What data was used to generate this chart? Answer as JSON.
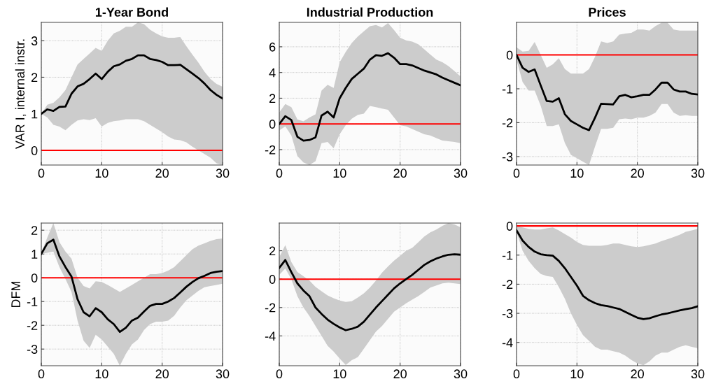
{
  "chart_data": [
    {
      "type": "line",
      "title": "1-Year Bond",
      "ylabel": "VAR I, internal instr.",
      "xlim": [
        0,
        30
      ],
      "xticks": [
        0,
        10,
        20,
        30
      ],
      "ylim": [
        -0.4,
        3.5
      ],
      "yticks": [
        0,
        1,
        2,
        3
      ],
      "grid": true,
      "ref_lines": [
        {
          "axis": "y",
          "value": 0,
          "color": "#ff0000"
        }
      ],
      "x": [
        0,
        1,
        2,
        3,
        4,
        5,
        6,
        7,
        8,
        9,
        10,
        11,
        12,
        13,
        14,
        15,
        16,
        17,
        18,
        19,
        20,
        21,
        22,
        23,
        24,
        25,
        26,
        27,
        28,
        29,
        30
      ],
      "series": [
        {
          "color": "#000000",
          "values": [
            1.0,
            1.12,
            1.08,
            1.19,
            1.2,
            1.55,
            1.75,
            1.82,
            1.95,
            2.1,
            1.95,
            2.15,
            2.3,
            2.35,
            2.45,
            2.5,
            2.6,
            2.6,
            2.5,
            2.47,
            2.42,
            2.33,
            2.33,
            2.34,
            2.22,
            2.1,
            1.98,
            1.83,
            1.65,
            1.52,
            1.42
          ],
          "upper": [
            1.0,
            1.25,
            1.3,
            1.45,
            1.65,
            2.0,
            2.35,
            2.5,
            2.65,
            2.8,
            2.72,
            3.0,
            3.2,
            3.27,
            3.38,
            3.38,
            3.5,
            3.45,
            3.3,
            3.2,
            3.12,
            3.08,
            3.08,
            3.1,
            2.85,
            2.62,
            2.4,
            2.15,
            1.95,
            1.82,
            1.74
          ],
          "lower": [
            1.0,
            0.9,
            0.7,
            0.65,
            0.55,
            0.7,
            0.82,
            0.85,
            0.83,
            0.88,
            0.65,
            0.75,
            0.8,
            0.82,
            0.85,
            0.85,
            0.85,
            0.8,
            0.7,
            0.6,
            0.5,
            0.38,
            0.3,
            0.28,
            0.22,
            0.1,
            0.0,
            -0.1,
            -0.2,
            -0.35,
            -0.4
          ]
        }
      ]
    },
    {
      "type": "line",
      "title": "Industrial Production",
      "xlim": [
        0,
        30
      ],
      "xticks": [
        0,
        10,
        20,
        30
      ],
      "ylim": [
        -3.2,
        7.9
      ],
      "yticks": [
        -2,
        0,
        2,
        4,
        6
      ],
      "grid": true,
      "ref_lines": [
        {
          "axis": "y",
          "value": 0,
          "color": "#ff0000"
        }
      ],
      "x": [
        0,
        1,
        2,
        3,
        4,
        5,
        6,
        7,
        8,
        9,
        10,
        11,
        12,
        13,
        14,
        15,
        16,
        17,
        18,
        19,
        20,
        21,
        22,
        23,
        24,
        25,
        26,
        27,
        28,
        29,
        30
      ],
      "series": [
        {
          "color": "#000000",
          "values": [
            0,
            0.6,
            0.3,
            -1.0,
            -1.3,
            -1.25,
            -1.05,
            0.65,
            0.95,
            0.5,
            2.0,
            2.8,
            3.5,
            3.9,
            4.3,
            5.0,
            5.35,
            5.3,
            5.5,
            5.15,
            4.65,
            4.65,
            4.55,
            4.35,
            4.15,
            4.0,
            3.85,
            3.6,
            3.4,
            3.2,
            3.0
          ],
          "upper": [
            0.9,
            1.55,
            1.3,
            0.35,
            0.2,
            0.5,
            0.75,
            2.6,
            3.05,
            2.8,
            4.8,
            5.6,
            6.3,
            6.8,
            7.2,
            7.6,
            7.7,
            7.5,
            7.85,
            7.3,
            6.7,
            6.5,
            6.4,
            6.2,
            5.8,
            5.4,
            5.0,
            4.8,
            4.5,
            4.1,
            3.7
          ],
          "lower": [
            -0.5,
            -0.2,
            -0.9,
            -2.5,
            -3.0,
            -3.2,
            -2.9,
            -1.5,
            -1.4,
            -1.9,
            -0.8,
            -0.1,
            0.4,
            0.7,
            0.8,
            1.4,
            1.3,
            1.2,
            1.1,
            0.5,
            -0.1,
            -0.2,
            -0.4,
            -0.6,
            -0.8,
            -0.9,
            -1.1,
            -1.3,
            -1.35,
            -1.4,
            -1.5
          ]
        }
      ]
    },
    {
      "type": "line",
      "title": "Prices",
      "xlim": [
        0,
        30
      ],
      "xticks": [
        0,
        10,
        20,
        30
      ],
      "ylim": [
        -3.25,
        0.96
      ],
      "yticks": [
        -3,
        -2,
        -1,
        0
      ],
      "grid": true,
      "ref_lines": [
        {
          "axis": "y",
          "value": 0,
          "color": "#ff0000"
        }
      ],
      "x": [
        0,
        1,
        2,
        3,
        4,
        5,
        6,
        7,
        8,
        9,
        10,
        11,
        12,
        13,
        14,
        15,
        16,
        17,
        18,
        19,
        20,
        21,
        22,
        23,
        24,
        25,
        26,
        27,
        28,
        29,
        30
      ],
      "series": [
        {
          "color": "#000000",
          "values": [
            0,
            -0.38,
            -0.5,
            -0.43,
            -0.9,
            -1.36,
            -1.38,
            -1.28,
            -1.75,
            -1.95,
            -2.05,
            -2.15,
            -2.22,
            -1.85,
            -1.44,
            -1.45,
            -1.46,
            -1.22,
            -1.18,
            -1.25,
            -1.22,
            -1.18,
            -1.18,
            -1.02,
            -0.82,
            -0.82,
            -1.02,
            -1.08,
            -1.08,
            -1.15,
            -1.17
          ],
          "upper": [
            0.22,
            0.1,
            0.12,
            0.38,
            0.0,
            -0.38,
            -0.28,
            -0.1,
            -0.42,
            -0.55,
            -0.55,
            -0.55,
            -0.42,
            -0.05,
            0.4,
            0.35,
            0.4,
            0.6,
            0.63,
            0.65,
            0.75,
            0.75,
            0.72,
            0.85,
            0.95,
            0.95,
            0.75,
            0.72,
            0.72,
            0.72,
            0.72
          ],
          "lower": [
            -0.15,
            -0.8,
            -1.05,
            -1.05,
            -1.5,
            -2.1,
            -2.1,
            -2.05,
            -2.6,
            -2.95,
            -3.05,
            -3.15,
            -3.25,
            -2.7,
            -2.18,
            -2.18,
            -2.15,
            -1.9,
            -1.88,
            -1.9,
            -1.85,
            -1.85,
            -1.8,
            -1.7,
            -1.45,
            -1.45,
            -1.7,
            -1.8,
            -1.78,
            -1.8,
            -1.8
          ]
        }
      ]
    },
    {
      "type": "line",
      "ylabel": "DFM",
      "xlim": [
        0,
        30
      ],
      "xticks": [
        0,
        10,
        20,
        30
      ],
      "ylim": [
        -3.7,
        2.3
      ],
      "yticks": [
        -3,
        -2,
        -1,
        0,
        1,
        2
      ],
      "grid": true,
      "ref_lines": [
        {
          "axis": "y",
          "value": 0,
          "color": "#ff0000"
        }
      ],
      "x": [
        0,
        1,
        2,
        3,
        4,
        5,
        6,
        7,
        8,
        9,
        10,
        11,
        12,
        13,
        14,
        15,
        16,
        17,
        18,
        19,
        20,
        21,
        22,
        23,
        24,
        25,
        26,
        27,
        28,
        29,
        30
      ],
      "series": [
        {
          "color": "#000000",
          "values": [
            1.0,
            1.45,
            1.6,
            0.9,
            0.45,
            0.05,
            -0.9,
            -1.45,
            -1.62,
            -1.28,
            -1.45,
            -1.75,
            -1.95,
            -2.28,
            -2.1,
            -1.8,
            -1.68,
            -1.42,
            -1.18,
            -1.1,
            -1.1,
            -1.0,
            -0.85,
            -0.62,
            -0.38,
            -0.18,
            -0.02,
            0.08,
            0.2,
            0.25,
            0.28
          ],
          "upper": [
            1.05,
            1.7,
            2.3,
            1.5,
            1.1,
            0.8,
            0.0,
            -0.35,
            -0.45,
            -0.15,
            -0.18,
            -0.3,
            -0.45,
            -0.6,
            -0.45,
            -0.3,
            -0.15,
            0.0,
            0.15,
            0.15,
            0.2,
            0.3,
            0.45,
            0.7,
            0.95,
            1.2,
            1.35,
            1.45,
            1.55,
            1.62,
            1.65
          ],
          "lower": [
            1.0,
            1.05,
            1.1,
            0.45,
            -0.05,
            -0.6,
            -1.8,
            -2.65,
            -2.95,
            -2.4,
            -2.6,
            -2.9,
            -3.2,
            -3.7,
            -3.2,
            -2.8,
            -2.6,
            -2.2,
            -1.95,
            -1.85,
            -1.85,
            -1.8,
            -1.6,
            -1.25,
            -0.95,
            -0.75,
            -0.55,
            -0.4,
            -0.35,
            -0.3,
            -0.25
          ]
        }
      ]
    },
    {
      "type": "line",
      "xlim": [
        0,
        30
      ],
      "xticks": [
        0,
        10,
        20,
        30
      ],
      "ylim": [
        -6.1,
        3.95
      ],
      "yticks": [
        -4,
        -2,
        0,
        2
      ],
      "grid": true,
      "ref_lines": [
        {
          "axis": "y",
          "value": 0,
          "color": "#ff0000"
        }
      ],
      "x": [
        0,
        1,
        2,
        3,
        4,
        5,
        6,
        7,
        8,
        9,
        10,
        11,
        12,
        13,
        14,
        15,
        16,
        17,
        18,
        19,
        20,
        21,
        22,
        23,
        24,
        25,
        26,
        27,
        28,
        29,
        30
      ],
      "series": [
        {
          "color": "#000000",
          "values": [
            0.8,
            1.35,
            0.5,
            -0.3,
            -0.8,
            -1.2,
            -2.0,
            -2.45,
            -2.85,
            -3.15,
            -3.4,
            -3.6,
            -3.5,
            -3.35,
            -3.0,
            -2.5,
            -2.0,
            -1.55,
            -1.1,
            -0.65,
            -0.3,
            0.0,
            0.3,
            0.65,
            1.0,
            1.25,
            1.45,
            1.6,
            1.72,
            1.75,
            1.72
          ],
          "upper": [
            1.55,
            2.4,
            1.2,
            0.5,
            0.2,
            -0.1,
            -0.55,
            -0.85,
            -1.15,
            -1.35,
            -1.5,
            -1.6,
            -1.55,
            -1.3,
            -1.0,
            -0.6,
            -0.1,
            0.45,
            0.9,
            1.3,
            1.65,
            2.0,
            2.2,
            2.6,
            3.0,
            3.3,
            3.5,
            3.75,
            3.95,
            3.85,
            3.65
          ],
          "lower": [
            0.3,
            0.75,
            0.0,
            -1.2,
            -2.0,
            -2.6,
            -3.3,
            -4.0,
            -4.7,
            -5.1,
            -5.6,
            -6.05,
            -5.7,
            -5.5,
            -4.9,
            -4.3,
            -3.7,
            -3.3,
            -2.8,
            -2.3,
            -2.0,
            -1.7,
            -1.45,
            -1.2,
            -0.9,
            -0.6,
            -0.45,
            -0.3,
            -0.25,
            -0.3,
            -0.35
          ]
        }
      ]
    },
    {
      "type": "line",
      "xlim": [
        0,
        30
      ],
      "xticks": [
        0,
        10,
        20,
        30
      ],
      "ylim": [
        -4.8,
        0.1
      ],
      "yticks": [
        -4,
        -3,
        -2,
        -1,
        0
      ],
      "grid": true,
      "ref_lines": [
        {
          "axis": "y",
          "value": 0,
          "color": "#ff0000"
        }
      ],
      "x": [
        0,
        1,
        2,
        3,
        4,
        5,
        6,
        7,
        8,
        9,
        10,
        11,
        12,
        13,
        14,
        15,
        16,
        17,
        18,
        19,
        20,
        21,
        22,
        23,
        24,
        25,
        26,
        27,
        28,
        29,
        30
      ],
      "series": [
        {
          "color": "#000000",
          "values": [
            -0.15,
            -0.5,
            -0.72,
            -0.88,
            -0.97,
            -1.0,
            -1.02,
            -1.2,
            -1.45,
            -1.75,
            -2.05,
            -2.4,
            -2.55,
            -2.65,
            -2.72,
            -2.75,
            -2.8,
            -2.85,
            -2.95,
            -3.05,
            -3.15,
            -3.2,
            -3.17,
            -3.1,
            -3.04,
            -3.0,
            -2.95,
            -2.9,
            -2.86,
            -2.82,
            -2.76
          ],
          "upper": [
            0.0,
            -0.05,
            -0.1,
            -0.12,
            -0.12,
            -0.08,
            -0.05,
            -0.15,
            -0.28,
            -0.4,
            -0.55,
            -0.65,
            -0.68,
            -0.68,
            -0.68,
            -0.65,
            -0.6,
            -0.6,
            -0.65,
            -0.7,
            -0.72,
            -0.7,
            -0.65,
            -0.6,
            -0.52,
            -0.45,
            -0.38,
            -0.3,
            -0.2,
            -0.15,
            -0.1
          ],
          "lower": [
            -0.2,
            -0.85,
            -1.2,
            -1.45,
            -1.65,
            -1.72,
            -1.75,
            -2.1,
            -2.5,
            -3.0,
            -3.4,
            -3.75,
            -3.95,
            -4.15,
            -4.25,
            -4.25,
            -4.3,
            -4.35,
            -4.45,
            -4.6,
            -4.72,
            -4.78,
            -4.65,
            -4.45,
            -4.35,
            -4.35,
            -4.25,
            -4.15,
            -4.1,
            -4.15,
            -4.2
          ]
        }
      ]
    }
  ]
}
